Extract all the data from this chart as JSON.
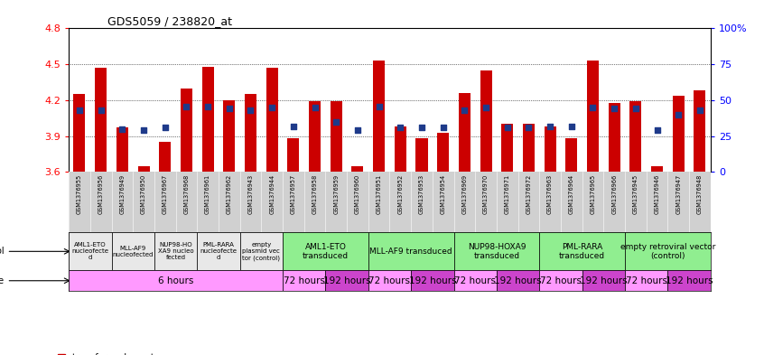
{
  "title": "GDS5059 / 238820_at",
  "ylim": [
    3.6,
    4.8
  ],
  "yticks": [
    3.6,
    3.9,
    4.2,
    4.5,
    4.8
  ],
  "samples": [
    "GSM1376955",
    "GSM1376956",
    "GSM1376949",
    "GSM1376950",
    "GSM1376967",
    "GSM1376968",
    "GSM1376961",
    "GSM1376962",
    "GSM1376943",
    "GSM1376944",
    "GSM1376957",
    "GSM1376958",
    "GSM1376959",
    "GSM1376960",
    "GSM1376951",
    "GSM1376952",
    "GSM1376953",
    "GSM1376954",
    "GSM1376969",
    "GSM1376970",
    "GSM1376971",
    "GSM1376972",
    "GSM1376963",
    "GSM1376964",
    "GSM1376965",
    "GSM1376966",
    "GSM1376945",
    "GSM1376946",
    "GSM1376947",
    "GSM1376948"
  ],
  "bar_values": [
    4.25,
    4.47,
    3.97,
    3.65,
    3.85,
    4.3,
    4.48,
    4.2,
    4.25,
    4.47,
    3.88,
    4.19,
    4.19,
    3.65,
    4.53,
    3.98,
    3.88,
    3.93,
    4.26,
    4.45,
    4.0,
    4.0,
    3.98,
    3.88,
    4.53,
    4.18,
    4.19,
    3.65,
    4.24,
    4.28
  ],
  "dot_values": [
    4.12,
    4.12,
    3.96,
    3.95,
    3.97,
    4.15,
    4.15,
    4.13,
    4.12,
    4.14,
    3.98,
    4.14,
    4.02,
    3.95,
    4.15,
    3.97,
    3.97,
    3.97,
    4.12,
    4.14,
    3.97,
    3.97,
    3.98,
    3.98,
    4.14,
    4.13,
    4.13,
    3.95,
    4.08,
    4.12
  ],
  "bar_color": "#CC0000",
  "dot_color": "#1E3A8A",
  "bar_bottom": 3.6,
  "protocol_groups": [
    {
      "label": "AML1-ETO\nnucleofecte\nd",
      "start": 0,
      "end": 2,
      "color": "#e8e8e8"
    },
    {
      "label": "MLL-AF9\nnucleofected",
      "start": 2,
      "end": 4,
      "color": "#e8e8e8"
    },
    {
      "label": "NUP98-HO\nXA9 nucleo\nfected",
      "start": 4,
      "end": 6,
      "color": "#e8e8e8"
    },
    {
      "label": "PML-RARA\nnucleofecte\nd",
      "start": 6,
      "end": 8,
      "color": "#e8e8e8"
    },
    {
      "label": "empty\nplasmid vec\ntor (control)",
      "start": 8,
      "end": 10,
      "color": "#e8e8e8"
    },
    {
      "label": "AML1-ETO\ntransduced",
      "start": 10,
      "end": 14,
      "color": "#90EE90"
    },
    {
      "label": "MLL-AF9 transduced",
      "start": 14,
      "end": 18,
      "color": "#90EE90"
    },
    {
      "label": "NUP98-HOXA9\ntransduced",
      "start": 18,
      "end": 22,
      "color": "#90EE90"
    },
    {
      "label": "PML-RARA\ntransduced",
      "start": 22,
      "end": 26,
      "color": "#90EE90"
    },
    {
      "label": "empty retroviral vector\n(control)",
      "start": 26,
      "end": 30,
      "color": "#90EE90"
    }
  ],
  "time_groups": [
    {
      "label": "6 hours",
      "start": 0,
      "end": 10,
      "color": "#FF99FF"
    },
    {
      "label": "72 hours",
      "start": 10,
      "end": 12,
      "color": "#FF99FF"
    },
    {
      "label": "192 hours",
      "start": 12,
      "end": 14,
      "color": "#CC44CC"
    },
    {
      "label": "72 hours",
      "start": 14,
      "end": 16,
      "color": "#FF99FF"
    },
    {
      "label": "192 hours",
      "start": 16,
      "end": 18,
      "color": "#CC44CC"
    },
    {
      "label": "72 hours",
      "start": 18,
      "end": 20,
      "color": "#FF99FF"
    },
    {
      "label": "192 hours",
      "start": 20,
      "end": 22,
      "color": "#CC44CC"
    },
    {
      "label": "72 hours",
      "start": 22,
      "end": 24,
      "color": "#FF99FF"
    },
    {
      "label": "192 hours",
      "start": 24,
      "end": 26,
      "color": "#CC44CC"
    },
    {
      "label": "72 hours",
      "start": 26,
      "end": 28,
      "color": "#FF99FF"
    },
    {
      "label": "192 hours",
      "start": 28,
      "end": 30,
      "color": "#CC44CC"
    }
  ]
}
